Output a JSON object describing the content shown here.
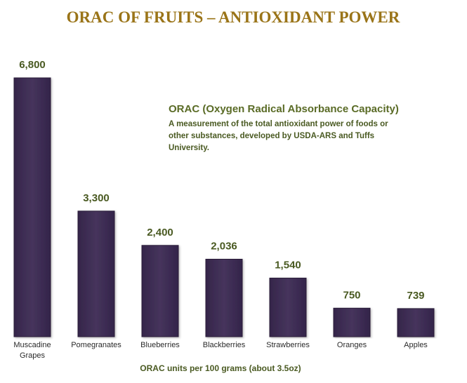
{
  "chart_data": {
    "type": "bar",
    "title": "ORAC OF FRUITS – ANTIOXIDANT POWER",
    "categories": [
      "Muscadine Grapes",
      "Pomegranates",
      "Blueberries",
      "Blackberries",
      "Strawberries",
      "Oranges",
      "Apples"
    ],
    "category_lines": [
      [
        "Muscadine",
        "Grapes"
      ],
      [
        "Pomegranates"
      ],
      [
        "Blueberries"
      ],
      [
        "Blackberries"
      ],
      [
        "Strawberries"
      ],
      [
        "Oranges"
      ],
      [
        "Apples"
      ]
    ],
    "values": [
      6800,
      3300,
      2400,
      2036,
      1540,
      750,
      739
    ],
    "value_labels": [
      "6,800",
      "3,300",
      "2,400",
      "2,036",
      "1,540",
      "750",
      "739"
    ],
    "xlabel": "ORAC units per 100 grams (about 3.5oz)",
    "ylabel": "",
    "ylim": [
      0,
      6800
    ],
    "grid": false,
    "legend": "none",
    "colors": {
      "bar": "#3f2d52",
      "bar_edge": "#2a1d38",
      "title": "#9a7418",
      "labels": "#4a5a22"
    },
    "annotation": {
      "heading": "ORAC (Oxygen Radical Absorbance Capacity)",
      "lines": [
        "A measurement of the total antioxidant power of foods or",
        "other substances, developed by USDA-ARS and Tuffs",
        "University."
      ]
    }
  }
}
